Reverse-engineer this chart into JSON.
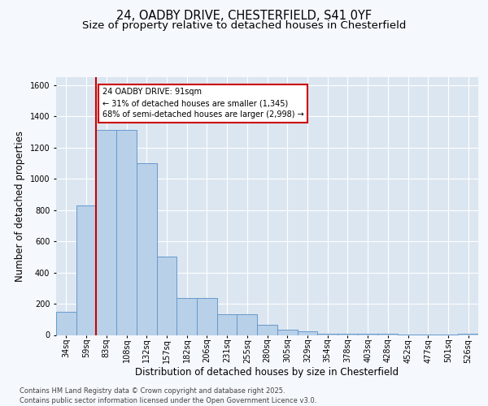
{
  "title_line1": "24, OADBY DRIVE, CHESTERFIELD, S41 0YF",
  "title_line2": "Size of property relative to detached houses in Chesterfield",
  "xlabel": "Distribution of detached houses by size in Chesterfield",
  "ylabel": "Number of detached properties",
  "categories": [
    "34sq",
    "59sq",
    "83sq",
    "108sq",
    "132sq",
    "157sq",
    "182sq",
    "206sq",
    "231sq",
    "255sq",
    "280sq",
    "305sq",
    "329sq",
    "354sq",
    "378sq",
    "403sq",
    "428sq",
    "452sq",
    "477sq",
    "501sq",
    "526sq"
  ],
  "values": [
    150,
    830,
    1310,
    1310,
    1100,
    500,
    235,
    235,
    135,
    135,
    65,
    35,
    25,
    10,
    10,
    10,
    10,
    5,
    5,
    5,
    10
  ],
  "bar_color": "#b8d0e8",
  "bar_edge_color": "#6699cc",
  "plot_bg_color": "#dce6f1",
  "fig_bg_color": "#f5f8fc",
  "vline_color": "#cc0000",
  "annotation_text": "24 OADBY DRIVE: 91sqm\n← 31% of detached houses are smaller (1,345)\n68% of semi-detached houses are larger (2,998) →",
  "annotation_box_edgecolor": "#cc0000",
  "ylim": [
    0,
    1650
  ],
  "yticks": [
    0,
    200,
    400,
    600,
    800,
    1000,
    1200,
    1400,
    1600
  ],
  "footer_text": "Contains HM Land Registry data © Crown copyright and database right 2025.\nContains public sector information licensed under the Open Government Licence v3.0.",
  "grid_color": "#ffffff",
  "title_fontsize": 10.5,
  "subtitle_fontsize": 9.5,
  "tick_fontsize": 7,
  "label_fontsize": 8.5,
  "footer_fontsize": 6,
  "annotation_fontsize": 7
}
